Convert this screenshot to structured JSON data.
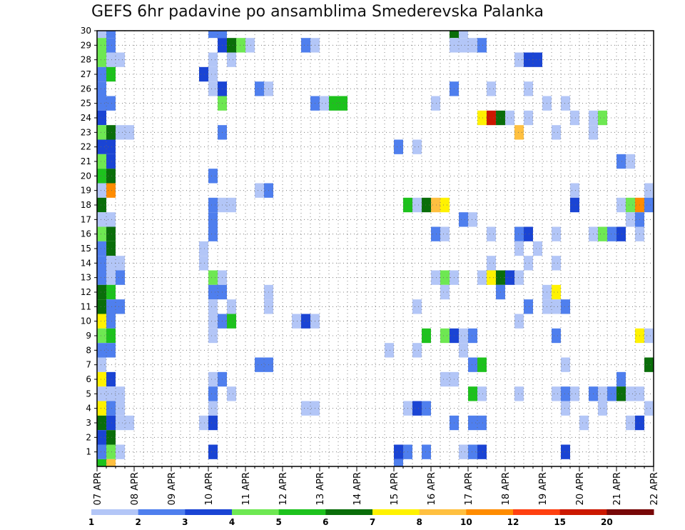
{
  "chart_data": {
    "type": "heatmap",
    "title": "GEFS 6hr padavine po ansamblima Smederevska Palanka",
    "xlabel": "",
    "ylabel": "",
    "x_tick_labels": [
      "07 APR",
      "08 APR",
      "09 APR",
      "10 APR",
      "11 APR",
      "12 APR",
      "13 APR",
      "14 APR",
      "15 APR",
      "16 APR",
      "17 APR",
      "18 APR",
      "19 APR",
      "20 APR",
      "21 APR",
      "22 APR"
    ],
    "x_range_days": [
      0,
      15
    ],
    "y_range": [
      0,
      30
    ],
    "y_tick_labels": [
      "1",
      "2",
      "3",
      "4",
      "5",
      "6",
      "7",
      "8",
      "9",
      "10",
      "11",
      "12",
      "13",
      "14",
      "15",
      "16",
      "17",
      "18",
      "19",
      "20",
      "21",
      "22",
      "23",
      "24",
      "25",
      "26",
      "27",
      "28",
      "29",
      "30"
    ],
    "grid": true,
    "colorbar": {
      "labels": [
        "1",
        "2",
        "3",
        "4",
        "5",
        "6",
        "7",
        "8",
        "10",
        "12",
        "15",
        "20"
      ],
      "colors": [
        "#b3c6f7",
        "#4f7fee",
        "#1a44d4",
        "#6ee852",
        "#1dc21d",
        "#0a6e0a",
        "#fff200",
        "#ffc040",
        "#ff8c00",
        "#ff4010",
        "#cc1800",
        "#780808"
      ]
    },
    "bins_mm": [
      1,
      2,
      3,
      4,
      5,
      6,
      7,
      8,
      10,
      12,
      15,
      20
    ],
    "cells_note_units": "member, start_day, end_day(days since 07 APR), color_index",
    "cells": [
      [
        30,
        0,
        0.25,
        0
      ],
      [
        30,
        0.25,
        0.5,
        1
      ],
      [
        30,
        3,
        3.5,
        1
      ],
      [
        30,
        9.5,
        9.75,
        5
      ],
      [
        30,
        9.75,
        10,
        0
      ],
      [
        29,
        0,
        0.25,
        3
      ],
      [
        29,
        0.25,
        0.5,
        1
      ],
      [
        29,
        3.25,
        3.5,
        2
      ],
      [
        29,
        3.5,
        3.75,
        5
      ],
      [
        29,
        3.75,
        4,
        3
      ],
      [
        29,
        4,
        4.25,
        0
      ],
      [
        29,
        5.5,
        5.75,
        1
      ],
      [
        29,
        5.75,
        6,
        0
      ],
      [
        29,
        9.5,
        10.25,
        0
      ],
      [
        29,
        10.25,
        10.5,
        1
      ],
      [
        28,
        0,
        0.25,
        3
      ],
      [
        28,
        0.25,
        0.75,
        0
      ],
      [
        28,
        3,
        3.25,
        0
      ],
      [
        28,
        3.5,
        3.75,
        0
      ],
      [
        28,
        11.25,
        11.5,
        0
      ],
      [
        28,
        11.5,
        12,
        2
      ],
      [
        27,
        0,
        0.25,
        1
      ],
      [
        27,
        0.25,
        0.5,
        4
      ],
      [
        27,
        2.75,
        3,
        2
      ],
      [
        27,
        3,
        3.25,
        0
      ],
      [
        26,
        0,
        0.25,
        1
      ],
      [
        26,
        3,
        3.25,
        0
      ],
      [
        26,
        3.25,
        3.5,
        2
      ],
      [
        26,
        4.25,
        4.5,
        1
      ],
      [
        26,
        4.5,
        4.75,
        0
      ],
      [
        26,
        9.5,
        9.75,
        1
      ],
      [
        26,
        10.5,
        10.75,
        0
      ],
      [
        26,
        11.5,
        11.75,
        0
      ],
      [
        25,
        0,
        0.25,
        1
      ],
      [
        25,
        0.25,
        0.5,
        1
      ],
      [
        25,
        3.25,
        3.5,
        3
      ],
      [
        25,
        5.75,
        6,
        1
      ],
      [
        25,
        6,
        6.25,
        0
      ],
      [
        25,
        6.25,
        6.75,
        4
      ],
      [
        25,
        9,
        9.25,
        0
      ],
      [
        25,
        12,
        12.25,
        0
      ],
      [
        25,
        12.5,
        12.75,
        0
      ],
      [
        24,
        0,
        0.25,
        2
      ],
      [
        24,
        10.25,
        10.5,
        6
      ],
      [
        24,
        10.5,
        10.75,
        10
      ],
      [
        24,
        10.75,
        11,
        5
      ],
      [
        24,
        11,
        11.25,
        0
      ],
      [
        24,
        11.5,
        11.75,
        0
      ],
      [
        24,
        12.75,
        13,
        0
      ],
      [
        24,
        13.25,
        13.5,
        0
      ],
      [
        24,
        13.5,
        13.75,
        3
      ],
      [
        23,
        0,
        0.25,
        3
      ],
      [
        23,
        0.25,
        0.5,
        5
      ],
      [
        23,
        0.5,
        1,
        0
      ],
      [
        23,
        3.25,
        3.5,
        1
      ],
      [
        23,
        11.25,
        11.5,
        7
      ],
      [
        23,
        12.25,
        12.5,
        0
      ],
      [
        23,
        13.25,
        13.5,
        0
      ],
      [
        22,
        0,
        0.5,
        2
      ],
      [
        22,
        8,
        8.25,
        1
      ],
      [
        22,
        8.5,
        8.75,
        0
      ],
      [
        21,
        0,
        0.25,
        3
      ],
      [
        21,
        0.25,
        0.5,
        2
      ],
      [
        21,
        14,
        14.25,
        1
      ],
      [
        21,
        14.25,
        14.5,
        0
      ],
      [
        20,
        0,
        0.25,
        4
      ],
      [
        20,
        0.25,
        0.5,
        5
      ],
      [
        20,
        3,
        3.25,
        1
      ],
      [
        19,
        0,
        0.25,
        0
      ],
      [
        19,
        0.25,
        0.5,
        8
      ],
      [
        19,
        4.25,
        4.5,
        0
      ],
      [
        19,
        4.5,
        4.75,
        1
      ],
      [
        19,
        12.75,
        13,
        0
      ],
      [
        19,
        14.75,
        15,
        0
      ],
      [
        18,
        0,
        0.25,
        5
      ],
      [
        18,
        3,
        3.25,
        1
      ],
      [
        18,
        3.25,
        3.75,
        0
      ],
      [
        18,
        8.25,
        8.5,
        4
      ],
      [
        18,
        8.5,
        8.75,
        0
      ],
      [
        18,
        8.75,
        9,
        5
      ],
      [
        18,
        9,
        9.25,
        7
      ],
      [
        18,
        9.25,
        9.5,
        6
      ],
      [
        18,
        12.75,
        13,
        2
      ],
      [
        18,
        14,
        14.25,
        0
      ],
      [
        18,
        14.25,
        14.5,
        3
      ],
      [
        18,
        14.5,
        14.75,
        8
      ],
      [
        18,
        14.75,
        15,
        1
      ],
      [
        17,
        0,
        0.5,
        0
      ],
      [
        17,
        3,
        3.25,
        1
      ],
      [
        17,
        9.75,
        10,
        1
      ],
      [
        17,
        10,
        10.25,
        0
      ],
      [
        17,
        14.25,
        14.5,
        0
      ],
      [
        17,
        14.5,
        14.75,
        1
      ],
      [
        16,
        0,
        0.25,
        3
      ],
      [
        16,
        0.25,
        0.5,
        5
      ],
      [
        16,
        3,
        3.25,
        1
      ],
      [
        16,
        9,
        9.25,
        1
      ],
      [
        16,
        9.25,
        9.5,
        0
      ],
      [
        16,
        10.5,
        10.75,
        0
      ],
      [
        16,
        11.25,
        11.5,
        1
      ],
      [
        16,
        11.5,
        11.75,
        2
      ],
      [
        16,
        12.25,
        12.5,
        0
      ],
      [
        16,
        13.25,
        13.5,
        0
      ],
      [
        16,
        13.5,
        13.75,
        3
      ],
      [
        16,
        13.75,
        14,
        1
      ],
      [
        16,
        14,
        14.25,
        2
      ],
      [
        16,
        14.5,
        14.75,
        0
      ],
      [
        15,
        0,
        0.25,
        1
      ],
      [
        15,
        0.25,
        0.5,
        5
      ],
      [
        15,
        2.75,
        3,
        0
      ],
      [
        15,
        11.25,
        11.5,
        0
      ],
      [
        15,
        11.75,
        12,
        0
      ],
      [
        14,
        0,
        0.25,
        1
      ],
      [
        14,
        0.25,
        0.75,
        0
      ],
      [
        14,
        2.75,
        3,
        0
      ],
      [
        14,
        10.5,
        10.75,
        0
      ],
      [
        14,
        11.5,
        11.75,
        0
      ],
      [
        14,
        12.25,
        12.5,
        0
      ],
      [
        13,
        0,
        0.25,
        1
      ],
      [
        13,
        0.25,
        0.5,
        0
      ],
      [
        13,
        0.5,
        0.75,
        1
      ],
      [
        13,
        3,
        3.25,
        3
      ],
      [
        13,
        3.25,
        3.5,
        0
      ],
      [
        13,
        9,
        9.25,
        0
      ],
      [
        13,
        9.25,
        9.5,
        3
      ],
      [
        13,
        9.5,
        9.75,
        0
      ],
      [
        13,
        10.25,
        10.5,
        0
      ],
      [
        13,
        10.5,
        10.75,
        6
      ],
      [
        13,
        10.75,
        11,
        5
      ],
      [
        13,
        11,
        11.25,
        2
      ],
      [
        13,
        11.25,
        11.5,
        0
      ],
      [
        12,
        0,
        0.25,
        5
      ],
      [
        12,
        0.25,
        0.5,
        4
      ],
      [
        12,
        3,
        3.5,
        1
      ],
      [
        12,
        4.5,
        4.75,
        0
      ],
      [
        12,
        9.25,
        9.5,
        0
      ],
      [
        12,
        10.75,
        11,
        1
      ],
      [
        12,
        12,
        12.25,
        0
      ],
      [
        12,
        12.25,
        12.5,
        6
      ],
      [
        11,
        0,
        0.25,
        5
      ],
      [
        11,
        0.25,
        0.75,
        1
      ],
      [
        11,
        3,
        3.25,
        0
      ],
      [
        11,
        3.5,
        3.75,
        0
      ],
      [
        11,
        4.5,
        4.75,
        0
      ],
      [
        11,
        8.5,
        8.75,
        0
      ],
      [
        11,
        11.5,
        11.75,
        1
      ],
      [
        11,
        12,
        12.5,
        0
      ],
      [
        11,
        12.5,
        12.75,
        1
      ],
      [
        10,
        0,
        0.25,
        6
      ],
      [
        10,
        0.25,
        0.5,
        1
      ],
      [
        10,
        3,
        3.25,
        0
      ],
      [
        10,
        3.25,
        3.5,
        1
      ],
      [
        10,
        3.5,
        3.75,
        4
      ],
      [
        10,
        5.25,
        5.5,
        0
      ],
      [
        10,
        5.5,
        5.75,
        2
      ],
      [
        10,
        5.75,
        6,
        0
      ],
      [
        10,
        11.25,
        11.5,
        0
      ],
      [
        9,
        0,
        0.25,
        3
      ],
      [
        9,
        0.25,
        0.5,
        4
      ],
      [
        9,
        3,
        3.25,
        0
      ],
      [
        9,
        8.75,
        9,
        4
      ],
      [
        9,
        9.25,
        9.5,
        3
      ],
      [
        9,
        9.5,
        9.75,
        2
      ],
      [
        9,
        9.75,
        10,
        0
      ],
      [
        9,
        10,
        10.25,
        1
      ],
      [
        9,
        12.25,
        12.5,
        1
      ],
      [
        9,
        14.5,
        14.75,
        6
      ],
      [
        9,
        14.75,
        15,
        0
      ],
      [
        8,
        0,
        0.5,
        1
      ],
      [
        8,
        7.75,
        8,
        0
      ],
      [
        8,
        8.5,
        8.75,
        0
      ],
      [
        8,
        9.75,
        10,
        0
      ],
      [
        7,
        0,
        0.25,
        0
      ],
      [
        7,
        4.25,
        4.75,
        1
      ],
      [
        7,
        10,
        10.25,
        1
      ],
      [
        7,
        10.25,
        10.5,
        4
      ],
      [
        7,
        12.5,
        12.75,
        0
      ],
      [
        7,
        14.75,
        15,
        5
      ],
      [
        6,
        0,
        0.25,
        6
      ],
      [
        6,
        0.25,
        0.5,
        2
      ],
      [
        6,
        3,
        3.25,
        0
      ],
      [
        6,
        3.25,
        3.5,
        1
      ],
      [
        6,
        9.25,
        9.75,
        0
      ],
      [
        6,
        14,
        14.25,
        1
      ],
      [
        5,
        0,
        0.75,
        0
      ],
      [
        5,
        3,
        3.25,
        1
      ],
      [
        5,
        3.5,
        3.75,
        0
      ],
      [
        5,
        10,
        10.25,
        4
      ],
      [
        5,
        10.25,
        10.5,
        0
      ],
      [
        5,
        11.25,
        11.5,
        0
      ],
      [
        5,
        12.25,
        12.5,
        0
      ],
      [
        5,
        12.5,
        12.75,
        1
      ],
      [
        5,
        12.75,
        13,
        0
      ],
      [
        5,
        13.25,
        13.5,
        1
      ],
      [
        5,
        13.5,
        13.75,
        0
      ],
      [
        5,
        13.75,
        14,
        1
      ],
      [
        5,
        14,
        14.25,
        5
      ],
      [
        5,
        14.25,
        14.75,
        0
      ],
      [
        4,
        0,
        0.25,
        6
      ],
      [
        4,
        0.25,
        0.5,
        1
      ],
      [
        4,
        0.5,
        0.75,
        0
      ],
      [
        4,
        3,
        3.25,
        0
      ],
      [
        4,
        5.5,
        6,
        0
      ],
      [
        4,
        8.25,
        8.5,
        0
      ],
      [
        4,
        8.5,
        8.75,
        2
      ],
      [
        4,
        8.75,
        9,
        1
      ],
      [
        4,
        12.5,
        12.75,
        0
      ],
      [
        4,
        13.5,
        13.75,
        0
      ],
      [
        4,
        14.75,
        15,
        0
      ],
      [
        3,
        0,
        0.25,
        5
      ],
      [
        3,
        0.25,
        0.5,
        2
      ],
      [
        3,
        0.5,
        1,
        0
      ],
      [
        3,
        2.75,
        3,
        0
      ],
      [
        3,
        3,
        3.25,
        2
      ],
      [
        3,
        9.5,
        9.75,
        1
      ],
      [
        3,
        10,
        10.5,
        1
      ],
      [
        3,
        13,
        13.25,
        0
      ],
      [
        3,
        14.25,
        14.5,
        0
      ],
      [
        3,
        14.5,
        14.75,
        2
      ],
      [
        2,
        0,
        0.25,
        2
      ],
      [
        2,
        0.25,
        0.5,
        5
      ],
      [
        1,
        0,
        0.25,
        1
      ],
      [
        1,
        0.25,
        0.5,
        3
      ],
      [
        1,
        0.5,
        0.75,
        0
      ],
      [
        1,
        3,
        3.25,
        2
      ],
      [
        1,
        8,
        8.25,
        2
      ],
      [
        1,
        8.25,
        8.5,
        1
      ],
      [
        1,
        8.75,
        9,
        1
      ],
      [
        1,
        9.75,
        10,
        0
      ],
      [
        1,
        10,
        10.25,
        1
      ],
      [
        1,
        10.25,
        10.5,
        2
      ],
      [
        1,
        12.5,
        12.75,
        2
      ],
      [
        0,
        0,
        0.25,
        4
      ],
      [
        0,
        0.25,
        0.5,
        7
      ],
      [
        0,
        8,
        8.25,
        1
      ]
    ]
  }
}
